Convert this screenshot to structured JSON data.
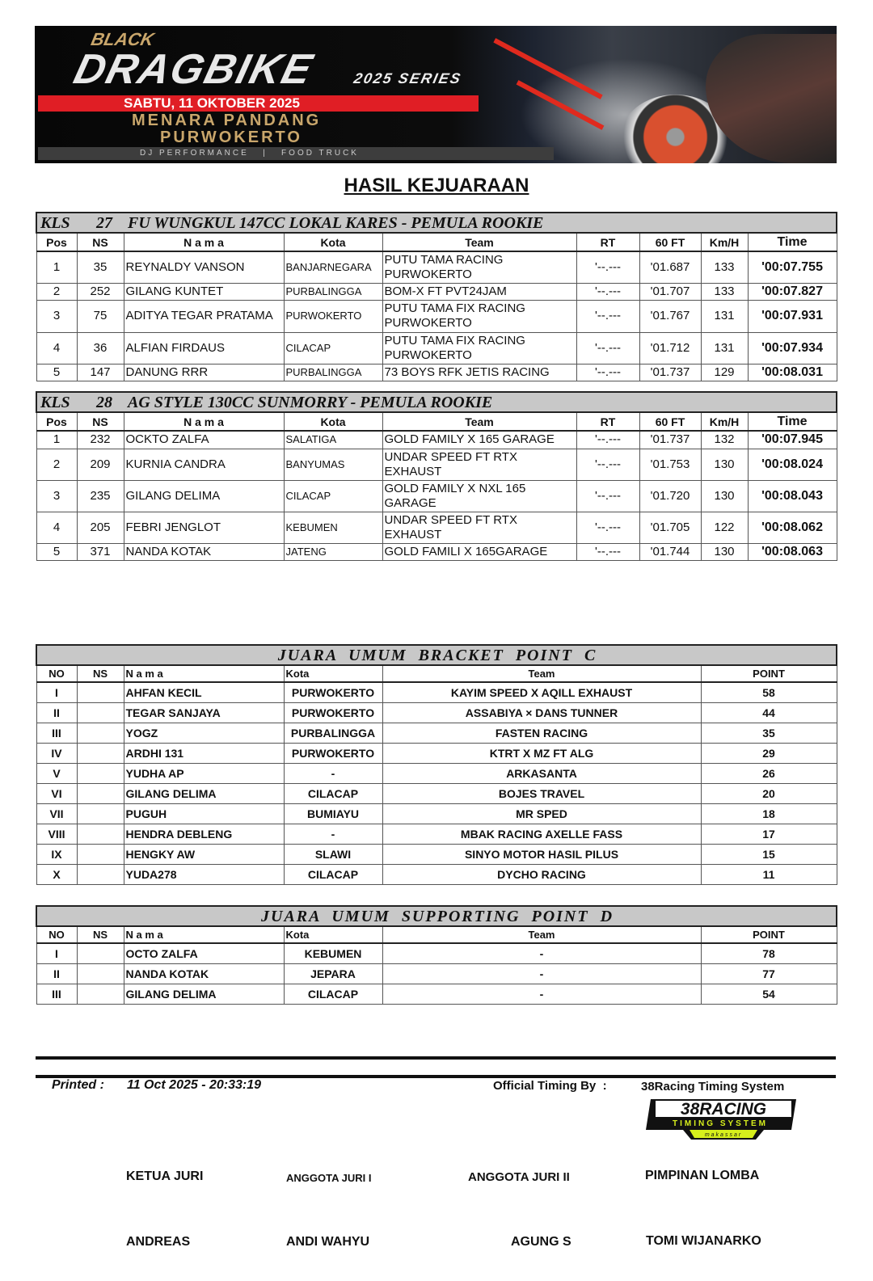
{
  "banner": {
    "brand_top": "BLACK",
    "brand_main": "DRAGBIKE",
    "series": "2025 SERIES",
    "date": "SABTU, 11 OKTOBER 2025",
    "venue_line1": "MENARA PANDANG",
    "venue_line2": "PURWOKERTO",
    "extras": "DJ PERFORMANCE   |   FOOD TRUCK"
  },
  "title": "HASIL KEJUARAAN",
  "race_headers": [
    "Pos",
    "NS",
    "N a m a",
    "Kota",
    "Team",
    "RT",
    "60 FT",
    "Km/H",
    "Time"
  ],
  "races": [
    {
      "kls": "KLS",
      "num": "27",
      "name": "FU WUNGKUL 147CC LOKAL KARES - PEMULA ROOKIE",
      "rows": [
        [
          "1",
          "35",
          "REYNALDY VANSON",
          "BANJARNEGARA",
          "PUTU TAMA RACING PURWOKERTO",
          "'--.---",
          "'01.687",
          "133",
          "'00:07.755"
        ],
        [
          "2",
          "252",
          "GILANG KUNTET",
          "PURBALINGGA",
          "BOM-X FT PVT24JAM",
          "'--.---",
          "'01.707",
          "133",
          "'00:07.827"
        ],
        [
          "3",
          "75",
          "ADITYA TEGAR PRATAMA",
          "PURWOKERTO",
          "PUTU TAMA FIX RACING PURWOKERTO",
          "'--.---",
          "'01.767",
          "131",
          "'00:07.931"
        ],
        [
          "4",
          "36",
          "ALFIAN FIRDAUS",
          "CILACAP",
          "PUTU TAMA FIX RACING PURWOKERTO",
          "'--.---",
          "'01.712",
          "131",
          "'00:07.934"
        ],
        [
          "5",
          "147",
          "DANUNG RRR",
          "PURBALINGGA",
          "73 BOYS RFK JETIS RACING",
          "'--.---",
          "'01.737",
          "129",
          "'00:08.031"
        ]
      ]
    },
    {
      "kls": "KLS",
      "num": "28",
      "name": "AG STYLE 130CC SUNMORRY - PEMULA ROOKIE",
      "rows": [
        [
          "1",
          "232",
          "OCKTO ZALFA",
          "SALATIGA",
          "GOLD FAMILY X 165 GARAGE",
          "'--.---",
          "'01.737",
          "132",
          "'00:07.945"
        ],
        [
          "2",
          "209",
          "KURNIA CANDRA",
          "BANYUMAS",
          "UNDAR SPEED FT RTX EXHAUST",
          "'--.---",
          "'01.753",
          "130",
          "'00:08.024"
        ],
        [
          "3",
          "235",
          "GILANG DELIMA",
          "CILACAP",
          "GOLD FAMILY X NXL 165 GARAGE",
          "'--.---",
          "'01.720",
          "130",
          "'00:08.043"
        ],
        [
          "4",
          "205",
          "FEBRI JENGLOT",
          "KEBUMEN",
          "UNDAR SPEED FT RTX EXHAUST",
          "'--.---",
          "'01.705",
          "122",
          "'00:08.062"
        ],
        [
          "5",
          "371",
          "NANDA KOTAK",
          "JATENG",
          "GOLD FAMILI X 165GARAGE",
          "'--.---",
          "'01.744",
          "130",
          "'00:08.063"
        ]
      ]
    }
  ],
  "standing_headers": [
    "NO",
    "NS",
    "N a m a",
    "Kota",
    "Team",
    "POINT"
  ],
  "standings": [
    {
      "title": "JUARA  UMUM  BRACKET  POINT  C",
      "rows": [
        [
          "I",
          "",
          "AHFAN KECIL",
          "PURWOKERTO",
          "KAYIM SPEED X AQILL EXHAUST",
          "58"
        ],
        [
          "II",
          "",
          "TEGAR SANJAYA",
          "PURWOKERTO",
          "ASSABIYA × DANS TUNNER",
          "44"
        ],
        [
          "III",
          "",
          "YOGZ",
          "PURBALINGGA",
          "FASTEN RACING",
          "35"
        ],
        [
          "IV",
          "",
          "ARDHI 131",
          "PURWOKERTO",
          "KTRT X MZ FT ALG",
          "29"
        ],
        [
          "V",
          "",
          "YUDHA AP",
          "-",
          "ARKASANTA",
          "26"
        ],
        [
          "VI",
          "",
          "GILANG DELIMA",
          "CILACAP",
          "BOJES TRAVEL",
          "20"
        ],
        [
          "VII",
          "",
          "PUGUH",
          "BUMIAYU",
          "MR SPED",
          "18"
        ],
        [
          "VIII",
          "",
          "HENDRA DEBLENG",
          "-",
          "MBAK RACING AXELLE FASS",
          "17"
        ],
        [
          "IX",
          "",
          "HENGKY AW",
          "SLAWI",
          "SINYO MOTOR HASIL PILUS",
          "15"
        ],
        [
          "X",
          "",
          "YUDA278",
          "CILACAP",
          "DYCHO RACING",
          "11"
        ]
      ]
    },
    {
      "title": "JUARA  UMUM  SUPPORTING  POINT  D",
      "rows": [
        [
          "I",
          "",
          "OCTO ZALFA",
          "KEBUMEN",
          "-",
          "78"
        ],
        [
          "II",
          "",
          "NANDA KOTAK",
          "JEPARA",
          "-",
          "77"
        ],
        [
          "III",
          "",
          "GILANG DELIMA",
          "CILACAP",
          "-",
          "54"
        ]
      ]
    }
  ],
  "footer": {
    "printed_label": "Printed :",
    "printed_value": "11 Oct 2025 - 20:33:19",
    "timing_label": "Official Timing By  :",
    "timing_value": "38Racing Timing System",
    "logo_text": "38RACING",
    "logo_sub": "TIMING SYSTEM",
    "logo_city": "makassar"
  },
  "signatures": [
    {
      "role": "KETUA JURI",
      "name": "ANDREAS"
    },
    {
      "role": "ANGGOTA JURI I",
      "name": "ANDI WAHYU"
    },
    {
      "role": "ANGGOTA JURI II",
      "name": "AGUNG S"
    },
    {
      "role": "PIMPINAN LOMBA",
      "name": "TOMI WIJANARKO"
    }
  ],
  "colors": {
    "banner_red": "#e01e25",
    "banner_gold": "#c9a66b",
    "header_gray": "#c8c8c8",
    "logo_yellow": "#d7ef1c"
  }
}
